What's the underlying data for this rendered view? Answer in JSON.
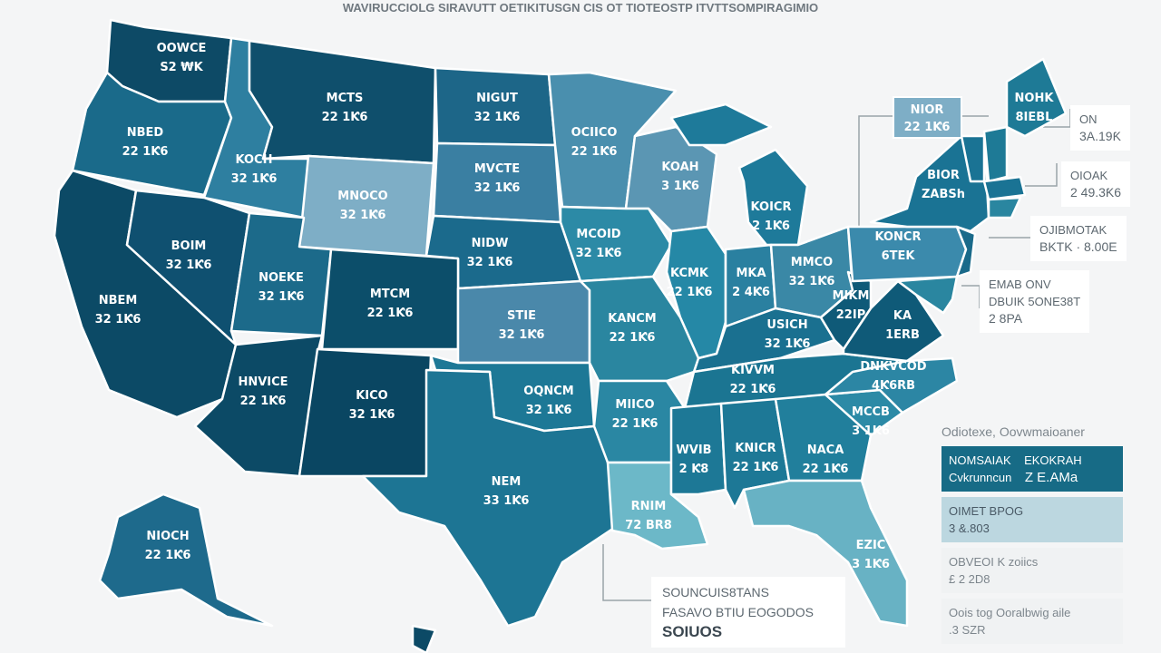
{
  "header": {
    "title": "WAVIRUCCIOLG SIRAVUTT OETIKITUSGN CIS OT TIOTEOSTP ITVTTSOMPIRAGIMIO"
  },
  "colors": {
    "background": "#f4f5f6",
    "border": "#ffffff",
    "callout_line": "#9aa3a9"
  },
  "states": [
    {
      "id": "WA",
      "line1": "OOWCE",
      "line2": "S2 ₩K",
      "color": "#0d4a66"
    },
    {
      "id": "OR",
      "line1": "NBED",
      "line2": "22 1Ƙ6",
      "color": "#1a6a8a"
    },
    {
      "id": "ID",
      "line1": "KOCH",
      "line2": "32 1Ƙ6",
      "color": "#2e7fa0"
    },
    {
      "id": "MT",
      "line1": "MCTS",
      "line2": "22 1Ƙ6",
      "color": "#0f4f6c"
    },
    {
      "id": "WY",
      "line1": "MNOCO",
      "line2": "32 1Ƙ6",
      "color": "#7eaec6"
    },
    {
      "id": "ND",
      "line1": "NIGUT",
      "line2": "32 1Ƙ6",
      "color": "#1d6688"
    },
    {
      "id": "SD",
      "line1": "MVCTE",
      "line2": "32 1Ƙ6",
      "color": "#3a7fa2"
    },
    {
      "id": "NE",
      "line1": "NIDW",
      "line2": "32 1Ƙ6",
      "color": "#1b6a8c"
    },
    {
      "id": "MN",
      "line1": "OCIICO",
      "line2": "22 1Ƙ6",
      "color": "#4a8fae"
    },
    {
      "id": "WI",
      "line1": "KOAH",
      "line2": "3 1Ƙ6",
      "color": "#5b96b3"
    },
    {
      "id": "MIU",
      "line1": "",
      "line2": "",
      "color": "#1e7a9a"
    },
    {
      "id": "MI",
      "line1": "KOICR",
      "line2": "2 1Ƙ6",
      "color": "#1e7a9a"
    },
    {
      "id": "IA",
      "line1": "MCOID",
      "line2": "32 1Ƙ6",
      "color": "#2c8aa6"
    },
    {
      "id": "IL",
      "line1": "KCMK",
      "line2": "22 1Ƙ6",
      "color": "#2588a6"
    },
    {
      "id": "IN",
      "line1": "MKA",
      "line2": "2 4Ƙ6",
      "color": "#2a80a0"
    },
    {
      "id": "OH",
      "line1": "MMCO",
      "line2": "32 1Ƙ6",
      "color": "#3a88a6"
    },
    {
      "id": "KY",
      "line1": "USICH",
      "line2": "32 1Ƙ6",
      "color": "#1a7090"
    },
    {
      "id": "TN",
      "line1": "KIVVM",
      "line2": "22 1Ƙ6",
      "color": "#1b7592"
    },
    {
      "id": "WV",
      "line1": "MIKM",
      "line2": "22IP",
      "color": "#0f5a78"
    },
    {
      "id": "VA",
      "line1": "KA",
      "line2": "1ERB",
      "color": "#0f5a78"
    },
    {
      "id": "PA",
      "line1": "KONCR",
      "line2": "6TEK",
      "color": "#3b8aac"
    },
    {
      "id": "NY",
      "line1": "BIOR",
      "line2": "ZABSh",
      "color": "#1a7394"
    },
    {
      "id": "VT",
      "line1": "",
      "line2": "",
      "color": "#1a7394"
    },
    {
      "id": "NH",
      "line1": "",
      "line2": "",
      "color": "#1e7a96"
    },
    {
      "id": "ME",
      "line1": "NOHK",
      "line2": "8IEBL",
      "color": "#1e7a96"
    },
    {
      "id": "MA",
      "line1": "",
      "line2": "",
      "color": "#1a7394"
    },
    {
      "id": "CT",
      "line1": "",
      "line2": "",
      "color": "#2a86a0"
    },
    {
      "id": "NJ",
      "line1": "",
      "line2": "",
      "color": "#1a6a8a"
    },
    {
      "id": "MD",
      "line1": "",
      "line2": "",
      "color": "#2a86a0"
    },
    {
      "id": "CA",
      "line1": "NBEM",
      "line2": "32 1Ƙ6",
      "color": "#0c4a66"
    },
    {
      "id": "NV",
      "line1": "BOIM",
      "line2": "32 1Ƙ6",
      "color": "#0f5070"
    },
    {
      "id": "UT",
      "line1": "NOEKE",
      "line2": "32 1Ƙ6",
      "color": "#1c6a8a"
    },
    {
      "id": "CO",
      "line1": "MTCM",
      "line2": "22 1Ƙ6",
      "color": "#0c4e6a"
    },
    {
      "id": "AZ",
      "line1": "HNVICE",
      "line2": "22 1Ƙ6",
      "color": "#0c4a66"
    },
    {
      "id": "NM",
      "line1": "KICO",
      "line2": "32 1Ƙ6",
      "color": "#0a4662"
    },
    {
      "id": "KS",
      "line1": "STIE",
      "line2": "32 1Ƙ6",
      "color": "#4a88aa"
    },
    {
      "id": "OK",
      "line1": "OQNCM",
      "line2": "32 1Ƙ6",
      "color": "#1d7896"
    },
    {
      "id": "TX",
      "line1": "NEM",
      "line2": "33 1Ƙ6",
      "color": "#1d7594"
    },
    {
      "id": "MO",
      "line1": "KANCM",
      "line2": "22 1Ƙ6",
      "color": "#2a86a0"
    },
    {
      "id": "AR",
      "line1": "MIICO",
      "line2": "22 1Ƙ6",
      "color": "#2a87a3"
    },
    {
      "id": "LA",
      "line1": "RNIM",
      "line2": "72 BR8",
      "color": "#6cb8c8"
    },
    {
      "id": "MS",
      "line1": "WVIB",
      "line2": "2 Ƙ8",
      "color": "#1d7896"
    },
    {
      "id": "AL",
      "line1": "KNICR",
      "line2": "22 1Ƙ6",
      "color": "#1d7896"
    },
    {
      "id": "GA",
      "line1": "NACA",
      "line2": "22 1Ƙ6",
      "color": "#217f9c"
    },
    {
      "id": "SC",
      "line1": "MCCB",
      "line2": "3 1Ƙ6",
      "color": "#2c8aa6"
    },
    {
      "id": "NC",
      "line1": "DNKVCOD",
      "line2": "4Ƙ6RB",
      "color": "#2c86a4"
    },
    {
      "id": "FL",
      "line1": "EZIC",
      "line2": "3 1Ƙ6",
      "color": "#68b2c4"
    },
    {
      "id": "AK",
      "line1": "NIOCH",
      "line2": "22 1Ƙ6",
      "color": "#1e6a8c"
    },
    {
      "id": "HI",
      "line1": "",
      "line2": "",
      "color": "#0c4a66"
    }
  ],
  "callouts": {
    "ny_box": {
      "line1": "NIOR",
      "line2": "22 1Ƙ6",
      "color": "#7eaec6"
    },
    "c1": {
      "line1": "ON",
      "line2": "3A.19Ƙ"
    },
    "c2": {
      "line1": "OIOAK",
      "line2": "2 49.3Ƙ6"
    },
    "c3": {
      "line1": "OJIBMOTAK",
      "line2": "BKTK · 8.00E"
    },
    "c4": {
      "line1": "EMAB ONV",
      "line2": "DBUIK 5ONE38T",
      "line3": "2 8PA"
    },
    "bottom": {
      "line1": "SOUNCUIS8TANS",
      "line2": "FASAVO BTIU EOGODOS",
      "line3": "SOIUOS"
    }
  },
  "legend": {
    "title": "Odiotexe, Oovwmaioaner",
    "rows": [
      {
        "a": "NOMSAIAK",
        "b": "EKOKRAH",
        "c": "Cvkrunncun",
        "d": "Z E.AMa",
        "color": "#176b86",
        "text": "#ffffff"
      },
      {
        "a": "OIMET BPOG",
        "b": "",
        "c": "3 &.803",
        "d": "",
        "color": "#bcd7e0",
        "text": "#4a5a66"
      },
      {
        "a": "OBVEOI K zoiics",
        "b": "",
        "c": "£ 2 2D8",
        "d": "",
        "color": "#f0f2f3",
        "text": "#7d868d"
      },
      {
        "a": "Oois tog Ooralbwig aile",
        "b": "",
        "c": ".3 SZR",
        "d": "",
        "color": "#f0f2f3",
        "text": "#7d868d"
      }
    ]
  }
}
